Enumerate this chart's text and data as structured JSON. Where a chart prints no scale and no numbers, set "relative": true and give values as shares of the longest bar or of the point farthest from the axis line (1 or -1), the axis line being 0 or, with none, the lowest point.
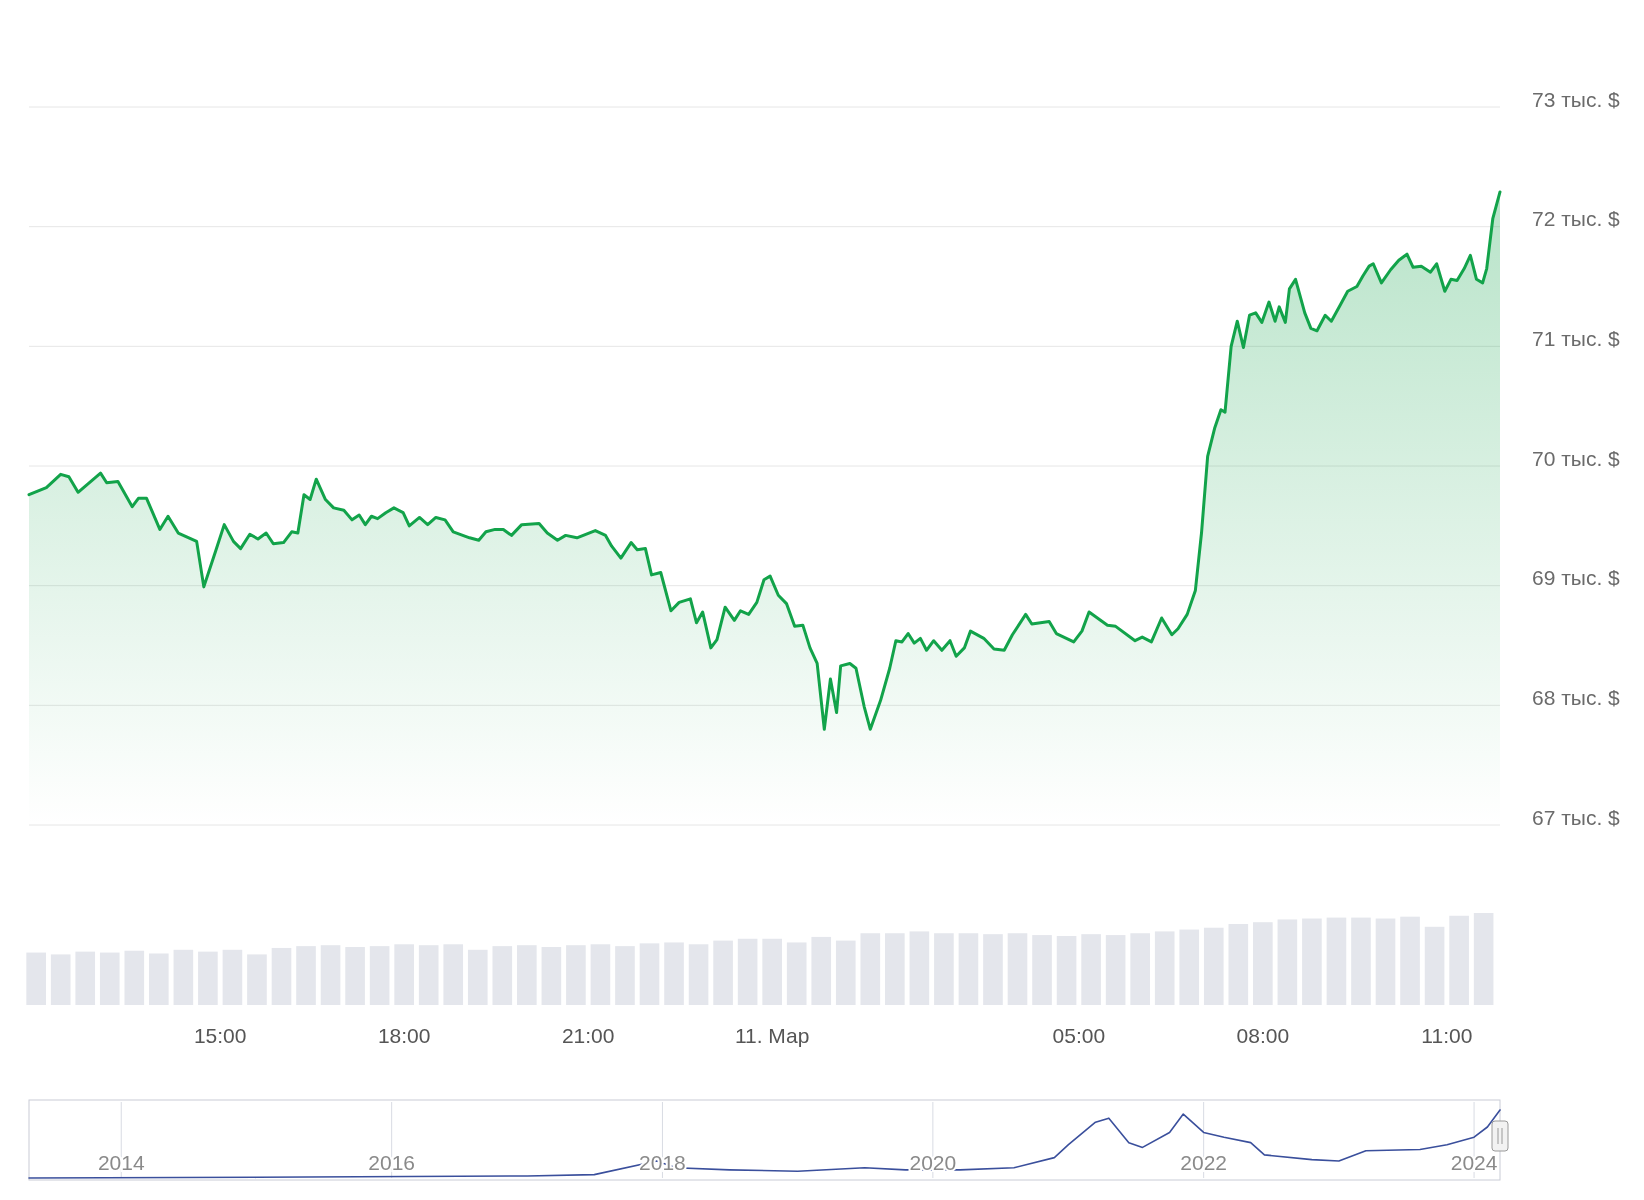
{
  "chart_data": [
    {
      "type": "area",
      "tick_labels": "y",
      "grid": "y",
      "xlim": [
        "2024-03-10T11:53",
        "2024-03-11T11:52"
      ],
      "ylim": [
        67,
        73
      ],
      "yticks": [
        {
          "value": 67,
          "label": "67 тыс. $"
        },
        {
          "value": 68,
          "label": "68 тыс. $"
        },
        {
          "value": 69,
          "label": "69 тыс. $"
        },
        {
          "value": 70,
          "label": "70 тыс. $"
        },
        {
          "value": 71,
          "label": "71 тыс. $"
        },
        {
          "value": 72,
          "label": "72 тыс. $"
        },
        {
          "value": 73,
          "label": "73 тыс. $"
        }
      ],
      "x": [
        "2024-03-10T11:53",
        "2024-03-10T12:10",
        "2024-03-10T12:24",
        "2024-03-10T12:32",
        "2024-03-10T12:41",
        "2024-03-10T13:03",
        "2024-03-10T13:09",
        "2024-03-10T13:20",
        "2024-03-10T13:34",
        "2024-03-10T13:40",
        "2024-03-10T13:48",
        "2024-03-10T14:01",
        "2024-03-10T14:09",
        "2024-03-10T14:19",
        "2024-03-10T14:37",
        "2024-03-10T14:44",
        "2024-03-10T14:56",
        "2024-03-10T15:04",
        "2024-03-10T15:13",
        "2024-03-10T15:20",
        "2024-03-10T15:29",
        "2024-03-10T15:37",
        "2024-03-10T15:45",
        "2024-03-10T15:52",
        "2024-03-10T16:02",
        "2024-03-10T16:10",
        "2024-03-10T16:16",
        "2024-03-10T16:22",
        "2024-03-10T16:28",
        "2024-03-10T16:34",
        "2024-03-10T16:43",
        "2024-03-10T16:51",
        "2024-03-10T17:01",
        "2024-03-10T17:09",
        "2024-03-10T17:16",
        "2024-03-10T17:22",
        "2024-03-10T17:28",
        "2024-03-10T17:34",
        "2024-03-10T17:42",
        "2024-03-10T17:50",
        "2024-03-10T17:59",
        "2024-03-10T18:05",
        "2024-03-10T18:15",
        "2024-03-10T18:23",
        "2024-03-10T18:31",
        "2024-03-10T18:40",
        "2024-03-10T18:48",
        "2024-03-10T19:04",
        "2024-03-10T19:13",
        "2024-03-10T19:20",
        "2024-03-10T19:29",
        "2024-03-10T19:37",
        "2024-03-10T19:45",
        "2024-03-10T19:55",
        "2024-03-10T20:12",
        "2024-03-10T20:20",
        "2024-03-10T20:30",
        "2024-03-10T20:38",
        "2024-03-10T20:49",
        "2024-03-10T21:07",
        "2024-03-10T21:17",
        "2024-03-10T21:23",
        "2024-03-10T21:32",
        "2024-03-10T21:42",
        "2024-03-10T21:48",
        "2024-03-10T21:56",
        "2024-03-10T22:02",
        "2024-03-10T22:11",
        "2024-03-10T22:21",
        "2024-03-10T22:29",
        "2024-03-10T22:40",
        "2024-03-10T22:46",
        "2024-03-10T22:52",
        "2024-03-10T23:00",
        "2024-03-10T23:06",
        "2024-03-10T23:14",
        "2024-03-10T23:23",
        "2024-03-10T23:29",
        "2024-03-10T23:37",
        "2024-03-10T23:45",
        "2024-03-10T23:52",
        "2024-03-10T23:58",
        "2024-03-11T00:06",
        "2024-03-11T00:14",
        "2024-03-11T00:22",
        "2024-03-11T00:30",
        "2024-03-11T00:37",
        "2024-03-11T00:44",
        "2024-03-11T00:51",
        "2024-03-11T00:57",
        "2024-03-11T01:03",
        "2024-03-11T01:07",
        "2024-03-11T01:16",
        "2024-03-11T01:22",
        "2024-03-11T01:30",
        "2024-03-11T01:36",
        "2024-03-11T01:46",
        "2024-03-11T01:55",
        "2024-03-11T02:01",
        "2024-03-11T02:07",
        "2024-03-11T02:13",
        "2024-03-11T02:19",
        "2024-03-11T02:25",
        "2024-03-11T02:31",
        "2024-03-11T02:38",
        "2024-03-11T02:46",
        "2024-03-11T02:54",
        "2024-03-11T03:00",
        "2024-03-11T03:08",
        "2024-03-11T03:14",
        "2024-03-11T03:27",
        "2024-03-11T03:37",
        "2024-03-11T03:47",
        "2024-03-11T03:55",
        "2024-03-11T04:08",
        "2024-03-11T04:14",
        "2024-03-11T04:31",
        "2024-03-11T04:38",
        "2024-03-11T04:55",
        "2024-03-11T05:03",
        "2024-03-11T05:10",
        "2024-03-11T05:28",
        "2024-03-11T05:36",
        "2024-03-11T05:55",
        "2024-03-11T06:02",
        "2024-03-11T06:11",
        "2024-03-11T06:21",
        "2024-03-11T06:31",
        "2024-03-11T06:37",
        "2024-03-11T06:46",
        "2024-03-11T06:54",
        "2024-03-11T07:00",
        "2024-03-11T07:06",
        "2024-03-11T07:13",
        "2024-03-11T07:19",
        "2024-03-11T07:23",
        "2024-03-11T07:29",
        "2024-03-11T07:35",
        "2024-03-11T07:41",
        "2024-03-11T07:47",
        "2024-03-11T07:53",
        "2024-03-11T07:59",
        "2024-03-11T08:06",
        "2024-03-11T08:12",
        "2024-03-11T08:16",
        "2024-03-11T08:22",
        "2024-03-11T08:26",
        "2024-03-11T08:32",
        "2024-03-11T08:41",
        "2024-03-11T08:47",
        "2024-03-11T08:53",
        "2024-03-11T09:01",
        "2024-03-11T09:07",
        "2024-03-11T09:16",
        "2024-03-11T09:23",
        "2024-03-11T09:32",
        "2024-03-11T09:38",
        "2024-03-11T09:44",
        "2024-03-11T09:48",
        "2024-03-11T09:56",
        "2024-03-11T10:05",
        "2024-03-11T10:13",
        "2024-03-11T10:21",
        "2024-03-11T10:27",
        "2024-03-11T10:35",
        "2024-03-11T10:44",
        "2024-03-11T10:50",
        "2024-03-11T10:58",
        "2024-03-11T11:04",
        "2024-03-11T11:10",
        "2024-03-11T11:17",
        "2024-03-11T11:23",
        "2024-03-11T11:29",
        "2024-03-11T11:35",
        "2024-03-11T11:39",
        "2024-03-11T11:45",
        "2024-03-11T11:52"
      ],
      "series": [
        {
          "color": "#12a34a",
          "values": [
            69.76,
            69.82,
            69.93,
            69.91,
            69.78,
            69.94,
            69.86,
            69.87,
            69.66,
            69.73,
            69.73,
            69.47,
            69.58,
            69.44,
            69.37,
            68.99,
            69.3,
            69.51,
            69.37,
            69.31,
            69.43,
            69.39,
            69.44,
            69.35,
            69.36,
            69.45,
            69.44,
            69.76,
            69.72,
            69.89,
            69.72,
            69.65,
            69.63,
            69.55,
            69.59,
            69.51,
            69.58,
            69.56,
            69.61,
            69.65,
            69.61,
            69.5,
            69.57,
            69.51,
            69.57,
            69.55,
            69.45,
            69.4,
            69.38,
            69.45,
            69.47,
            69.47,
            69.42,
            69.51,
            69.52,
            69.44,
            69.38,
            69.42,
            69.4,
            69.46,
            69.42,
            69.33,
            69.23,
            69.36,
            69.3,
            69.31,
            69.09,
            69.11,
            68.79,
            68.86,
            68.89,
            68.69,
            68.78,
            68.48,
            68.55,
            68.82,
            68.71,
            68.79,
            68.76,
            68.86,
            69.05,
            69.08,
            68.92,
            68.85,
            68.66,
            68.67,
            68.48,
            68.35,
            67.8,
            68.22,
            67.94,
            68.33,
            68.35,
            68.31,
            67.99,
            67.8,
            68.04,
            68.31,
            68.54,
            68.53,
            68.6,
            68.52,
            68.56,
            68.46,
            68.54,
            68.46,
            68.54,
            68.41,
            68.48,
            68.62,
            68.56,
            68.47,
            68.46,
            68.59,
            68.76,
            68.68,
            68.7,
            68.6,
            68.53,
            68.62,
            68.78,
            68.67,
            68.66,
            68.54,
            68.57,
            68.53,
            68.73,
            68.59,
            68.64,
            68.76,
            68.96,
            69.44,
            70.08,
            70.32,
            70.47,
            70.45,
            71.0,
            71.21,
            70.99,
            71.26,
            71.28,
            71.2,
            71.37,
            71.21,
            71.33,
            71.2,
            71.48,
            71.56,
            71.28,
            71.15,
            71.13,
            71.26,
            71.21,
            71.35,
            71.46,
            71.5,
            71.59,
            71.67,
            71.69,
            71.53,
            71.64,
            71.72,
            71.77,
            71.66,
            71.67,
            71.62,
            71.69,
            71.46,
            71.56,
            71.55,
            71.65,
            71.76,
            71.56,
            71.53,
            71.65,
            72.07,
            72.29
          ]
        }
      ]
    },
    {
      "type": "bar",
      "relative": true,
      "tick_labels": "x",
      "color": "#e4e6ec",
      "xlim": [
        "2024-03-10T11:53",
        "2024-03-11T11:52"
      ],
      "xticks": [
        {
          "value": "2024-03-10T15:00",
          "label": "15:00"
        },
        {
          "value": "2024-03-10T18:00",
          "label": "18:00"
        },
        {
          "value": "2024-03-10T21:00",
          "label": "21:00"
        },
        {
          "value": "2024-03-11T00:00",
          "label": "11. Мар"
        },
        {
          "value": "2024-03-11T05:00",
          "label": "05:00"
        },
        {
          "value": "2024-03-11T08:00",
          "label": "08:00"
        },
        {
          "value": "2024-03-11T11:00",
          "label": "11:00"
        }
      ],
      "x": [
        "2024-03-10T12:00",
        "2024-03-10T12:24",
        "2024-03-10T12:48",
        "2024-03-10T13:12",
        "2024-03-10T13:36",
        "2024-03-10T14:00",
        "2024-03-10T14:24",
        "2024-03-10T14:48",
        "2024-03-10T15:12",
        "2024-03-10T15:36",
        "2024-03-10T16:00",
        "2024-03-10T16:24",
        "2024-03-10T16:48",
        "2024-03-10T17:12",
        "2024-03-10T17:36",
        "2024-03-10T18:00",
        "2024-03-10T18:24",
        "2024-03-10T18:48",
        "2024-03-10T19:12",
        "2024-03-10T19:36",
        "2024-03-10T20:00",
        "2024-03-10T20:24",
        "2024-03-10T20:48",
        "2024-03-10T21:12",
        "2024-03-10T21:36",
        "2024-03-10T22:00",
        "2024-03-10T22:24",
        "2024-03-10T22:48",
        "2024-03-10T23:12",
        "2024-03-10T23:36",
        "2024-03-11T00:00",
        "2024-03-11T00:24",
        "2024-03-11T00:48",
        "2024-03-11T01:12",
        "2024-03-11T01:36",
        "2024-03-11T02:00",
        "2024-03-11T02:24",
        "2024-03-11T02:48",
        "2024-03-11T03:12",
        "2024-03-11T03:36",
        "2024-03-11T04:00",
        "2024-03-11T04:24",
        "2024-03-11T04:48",
        "2024-03-11T05:12",
        "2024-03-11T05:36",
        "2024-03-11T06:00",
        "2024-03-11T06:24",
        "2024-03-11T06:48",
        "2024-03-11T07:12",
        "2024-03-11T07:36",
        "2024-03-11T08:00",
        "2024-03-11T08:24",
        "2024-03-11T08:48",
        "2024-03-11T09:12",
        "2024-03-11T09:36",
        "2024-03-11T10:00",
        "2024-03-11T10:24",
        "2024-03-11T10:48",
        "2024-03-11T11:12",
        "2024-03-11T11:36"
      ],
      "values": [
        0.57,
        0.55,
        0.58,
        0.57,
        0.59,
        0.56,
        0.6,
        0.58,
        0.6,
        0.55,
        0.62,
        0.64,
        0.65,
        0.63,
        0.64,
        0.66,
        0.65,
        0.66,
        0.6,
        0.64,
        0.65,
        0.63,
        0.65,
        0.66,
        0.64,
        0.67,
        0.68,
        0.66,
        0.7,
        0.72,
        0.72,
        0.68,
        0.74,
        0.7,
        0.78,
        0.78,
        0.8,
        0.78,
        0.78,
        0.77,
        0.78,
        0.76,
        0.75,
        0.77,
        0.76,
        0.78,
        0.8,
        0.82,
        0.84,
        0.88,
        0.9,
        0.93,
        0.94,
        0.95,
        0.95,
        0.94,
        0.96,
        0.85,
        0.97,
        1.0
      ]
    },
    {
      "type": "line",
      "relative": true,
      "tick_labels": "x",
      "grid": "x",
      "xlim": [
        "2013-04-27",
        "2024-03-11"
      ],
      "xticks": [
        {
          "value": "2014-01-01",
          "label": "2014"
        },
        {
          "value": "2016-01-01",
          "label": "2016"
        },
        {
          "value": "2018-01-01",
          "label": "2018"
        },
        {
          "value": "2020-01-01",
          "label": "2020"
        },
        {
          "value": "2022-01-01",
          "label": "2022"
        },
        {
          "value": "2024-01-01",
          "label": "2024"
        }
      ],
      "x": [
        "2013-04-27",
        "2015-01-01",
        "2017-01-01",
        "2017-07-01",
        "2017-12-17",
        "2018-02-06",
        "2018-07-01",
        "2019-01-01",
        "2019-07-01",
        "2019-10-19",
        "2020-03-14",
        "2020-08-07",
        "2020-11-24",
        "2021-01-01",
        "2021-03-15",
        "2021-04-20",
        "2021-06-13",
        "2021-07-20",
        "2021-10-01",
        "2021-11-07",
        "2022-01-01",
        "2022-02-25",
        "2022-05-08",
        "2022-06-14",
        "2022-10-20",
        "2023-01-01",
        "2023-03-15",
        "2023-08-08",
        "2023-10-20",
        "2024-01-01",
        "2024-02-06",
        "2024-03-11"
      ],
      "series": [
        {
          "color": "#3a4f9c",
          "values": [
            0,
            0.01,
            0.03,
            0.05,
            0.25,
            0.15,
            0.12,
            0.1,
            0.15,
            0.12,
            0.12,
            0.15,
            0.3,
            0.49,
            0.82,
            0.88,
            0.52,
            0.45,
            0.67,
            0.94,
            0.67,
            0.6,
            0.52,
            0.34,
            0.27,
            0.25,
            0.4,
            0.42,
            0.49,
            0.6,
            0.75,
            1
          ]
        }
      ]
    }
  ]
}
